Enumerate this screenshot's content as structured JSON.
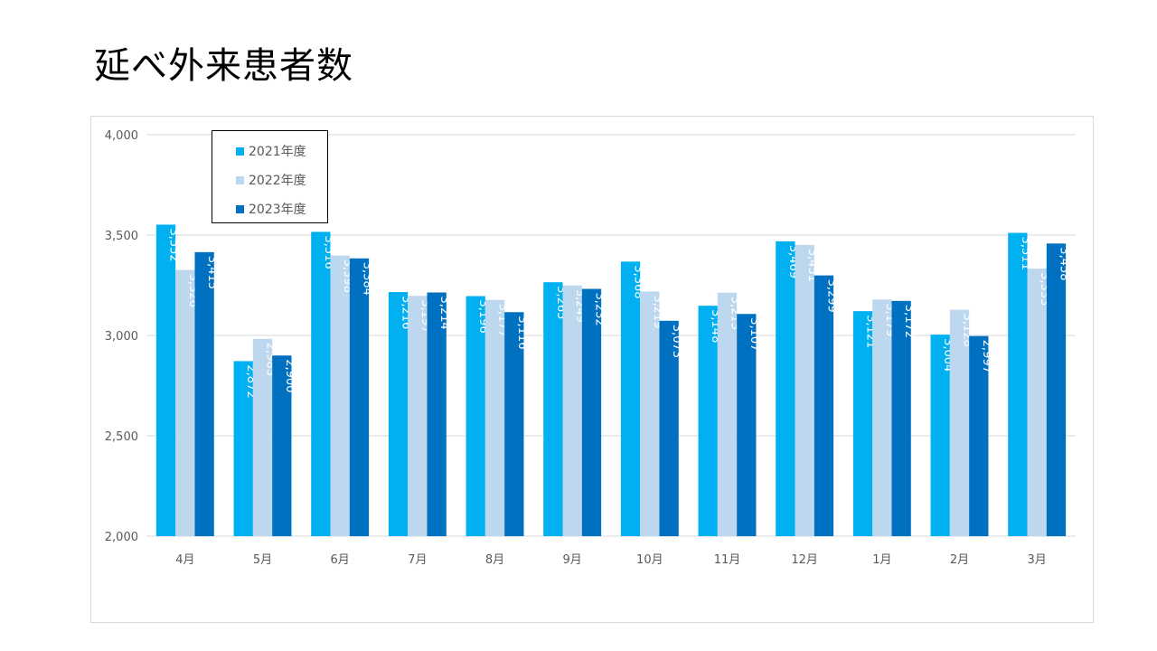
{
  "title": "延べ外来患者数",
  "colors": {
    "series_2021": "#00b0f0",
    "series_2022": "#bdd7ee",
    "series_2023": "#0070c0",
    "gridline": "#d9d9d9",
    "axis_text": "#595959"
  },
  "chart_data": {
    "type": "bar",
    "title": "",
    "xlabel": "",
    "ylabel": "",
    "ylim": [
      2000,
      4000
    ],
    "yticks": [
      2000,
      2500,
      3000,
      3500,
      4000
    ],
    "ytick_labels": [
      "2,000",
      "2,500",
      "3,000",
      "3,500",
      "4,000"
    ],
    "grid": true,
    "legend_position": "top-left",
    "categories": [
      "4月",
      "5月",
      "6月",
      "7月",
      "8月",
      "9月",
      "10月",
      "11月",
      "12月",
      "1月",
      "2月",
      "3月"
    ],
    "series": [
      {
        "name": "2021年度",
        "color": "#00b0f0",
        "label_color": "#ffffff",
        "values": [
          3552,
          2872,
          3516,
          3216,
          3196,
          3265,
          3368,
          3148,
          3469,
          3121,
          3004,
          3511
        ]
      },
      {
        "name": "2022年度",
        "color": "#bdd7ee",
        "label_color": "#ffffff",
        "values": [
          3326,
          2983,
          3398,
          3197,
          3177,
          3249,
          3219,
          3213,
          3451,
          3179,
          3128,
          3333
        ]
      },
      {
        "name": "2023年度",
        "color": "#0070c0",
        "label_color": "#ffffff",
        "values": [
          3415,
          2900,
          3384,
          3214,
          3116,
          3232,
          3073,
          3107,
          3299,
          3172,
          2997,
          3458
        ]
      }
    ]
  }
}
